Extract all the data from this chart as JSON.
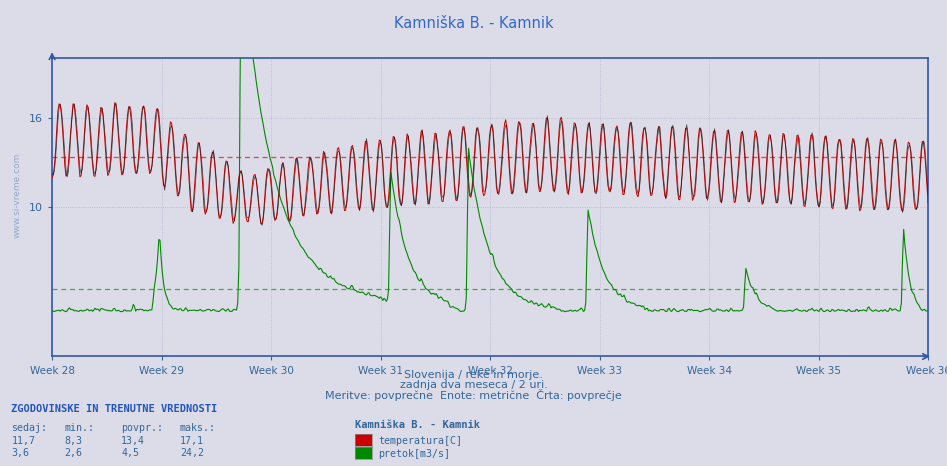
{
  "title": "Kamniška B. - Kamnik",
  "subtitle1": "Slovenija / reke in morje.",
  "subtitle2": "zadnja dva meseca / 2 uri.",
  "subtitle3": "Meritve: povprečne  Enote: metrične  Črta: povprečje",
  "x_labels": [
    "Week 28",
    "Week 29",
    "Week 30",
    "Week 31",
    "Week 32",
    "Week 33",
    "Week 34",
    "Week 35",
    "Week 36"
  ],
  "y_min": 0,
  "y_max": 20,
  "y_ticks": [
    10,
    16
  ],
  "temp_avg": 13.4,
  "flow_avg": 4.5,
  "temp_color": "#cc0000",
  "flow_color": "#008800",
  "black_color": "#111111",
  "background_color": "#dcdce8",
  "plot_bg_color": "#dcdce8",
  "grid_color": "#aaaacc",
  "legend_title": "Kamniška B. - Kamnik",
  "legend_temp": "temperatura[C]",
  "legend_flow": "pretok[m3/s]",
  "table_header": "ZGODOVINSKE IN TRENUTNE VREDNOSTI",
  "table_cols": [
    "sedaj:",
    "min.:",
    "povpr.:",
    "maks.:"
  ],
  "temp_row": [
    "11,7",
    "8,3",
    "13,4",
    "17,1"
  ],
  "flow_row": [
    "3,6",
    "2,6",
    "4,5",
    "24,2"
  ],
  "n_points": 756,
  "weeks": 9,
  "week_start": 28,
  "pts_per_day": 12,
  "days_per_week": 7
}
